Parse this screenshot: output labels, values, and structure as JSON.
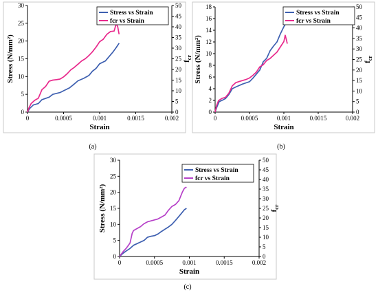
{
  "chart_data": [
    {
      "type": "line",
      "caption": "(a)",
      "xlabel": "Strain",
      "ylabel": "Stress (N/mm²)",
      "y2label_main": "f",
      "y2label_sub": "cr",
      "xlim": [
        0,
        0.002
      ],
      "ylim": [
        0,
        30
      ],
      "y2lim": [
        0,
        50
      ],
      "xticks": [
        "0",
        "0.0005",
        "0.001",
        "0.0015",
        "0.002"
      ],
      "yticks": [
        "0",
        "5",
        "10",
        "15",
        "20",
        "25",
        "30"
      ],
      "y2ticks": [
        "0",
        "5",
        "10",
        "15",
        "20",
        "25",
        "30",
        "35",
        "40",
        "45",
        "50"
      ],
      "legend_position": "top-right",
      "series": [
        {
          "name": "Stress vs Strain",
          "axis": "left",
          "color": "#3d5fb0",
          "points": [
            [
              0,
              0
            ],
            [
              3e-05,
              1.0
            ],
            [
              8e-05,
              2.0
            ],
            [
              0.00015,
              2.4
            ],
            [
              0.0002,
              3.5
            ],
            [
              0.0003,
              4.2
            ],
            [
              0.00035,
              5.0
            ],
            [
              0.00045,
              5.5
            ],
            [
              0.0005,
              6.0
            ],
            [
              0.00058,
              6.8
            ],
            [
              0.00063,
              7.6
            ],
            [
              0.0007,
              8.8
            ],
            [
              0.00078,
              9.5
            ],
            [
              0.00085,
              10.3
            ],
            [
              0.0009,
              11.5
            ],
            [
              0.00095,
              12.3
            ],
            [
              0.001,
              13.6
            ],
            [
              0.00108,
              14.4
            ],
            [
              0.00113,
              15.6
            ],
            [
              0.00118,
              16.8
            ],
            [
              0.00123,
              18.2
            ],
            [
              0.00127,
              19.4
            ]
          ]
        },
        {
          "name": "fcr vs Strain",
          "axis": "right",
          "color": "#e8298c",
          "points": [
            [
              0,
              0
            ],
            [
              2e-05,
              2.0
            ],
            [
              5e-05,
              4.0
            ],
            [
              0.0001,
              5.5
            ],
            [
              0.00015,
              6.5
            ],
            [
              0.0002,
              10.5
            ],
            [
              0.00025,
              12.0
            ],
            [
              0.0003,
              14.5
            ],
            [
              0.00035,
              15.0
            ],
            [
              0.0004,
              15.2
            ],
            [
              0.00045,
              15.5
            ],
            [
              0.0005,
              16.5
            ],
            [
              0.00055,
              18.0
            ],
            [
              0.0006,
              19.8
            ],
            [
              0.00065,
              21.0
            ],
            [
              0.0007,
              22.5
            ],
            [
              0.00075,
              24.0
            ],
            [
              0.0008,
              25.0
            ],
            [
              0.00085,
              26.5
            ],
            [
              0.0009,
              28.3
            ],
            [
              0.00095,
              30.5
            ],
            [
              0.001,
              33.0
            ],
            [
              0.00105,
              34.2
            ],
            [
              0.0011,
              36.5
            ],
            [
              0.00115,
              37.8
            ],
            [
              0.0012,
              38.0
            ],
            [
              0.00123,
              41.5
            ],
            [
              0.00125,
              40.0
            ],
            [
              0.00127,
              36.5
            ]
          ]
        }
      ]
    },
    {
      "type": "line",
      "caption": "(b)",
      "xlabel": "Strain",
      "ylabel": "Stress (N/mm²)",
      "y2label_main": "f",
      "y2label_sub": "cr",
      "xlim": [
        0,
        0.002
      ],
      "ylim": [
        0,
        18
      ],
      "y2lim": [
        0,
        50
      ],
      "xticks": [
        "0",
        "0.0005",
        "0.001",
        "0.0015",
        "0.002"
      ],
      "yticks": [
        "0",
        "2",
        "4",
        "6",
        "8",
        "10",
        "12",
        "14",
        "16",
        "18"
      ],
      "y2ticks": [
        "0",
        "5",
        "10",
        "15",
        "20",
        "25",
        "30",
        "35",
        "40",
        "45",
        "50"
      ],
      "legend_position": "top-right",
      "series": [
        {
          "name": "Stress vs Strain",
          "axis": "left",
          "color": "#3d5fb0",
          "points": [
            [
              0,
              0
            ],
            [
              3e-05,
              1.0
            ],
            [
              6e-05,
              1.8
            ],
            [
              0.0001,
              2.0
            ],
            [
              0.00015,
              2.3
            ],
            [
              0.0002,
              3.0
            ],
            [
              0.00025,
              4.0
            ],
            [
              0.0003,
              4.3
            ],
            [
              0.0004,
              4.8
            ],
            [
              0.00045,
              5.0
            ],
            [
              0.0005,
              5.2
            ],
            [
              0.00055,
              5.8
            ],
            [
              0.0006,
              6.5
            ],
            [
              0.00065,
              7.2
            ],
            [
              0.0007,
              8.6
            ],
            [
              0.00075,
              9.2
            ],
            [
              0.0008,
              10.5
            ],
            [
              0.00085,
              11.3
            ],
            [
              0.0009,
              12.0
            ],
            [
              0.00095,
              13.4
            ],
            [
              0.001,
              14.6
            ],
            [
              0.00102,
              15.0
            ]
          ]
        },
        {
          "name": "fcr vs Strain",
          "axis": "right",
          "color": "#e8298c",
          "points": [
            [
              0,
              0
            ],
            [
              2e-05,
              3.0
            ],
            [
              5e-05,
              5.5
            ],
            [
              0.0001,
              6.5
            ],
            [
              0.00015,
              7.0
            ],
            [
              0.0002,
              9.0
            ],
            [
              0.00025,
              12.5
            ],
            [
              0.0003,
              14.0
            ],
            [
              0.00035,
              14.5
            ],
            [
              0.0004,
              15.0
            ],
            [
              0.00045,
              15.5
            ],
            [
              0.0005,
              16.2
            ],
            [
              0.00055,
              17.5
            ],
            [
              0.0006,
              19.0
            ],
            [
              0.00065,
              21.5
            ],
            [
              0.0007,
              22.5
            ],
            [
              0.00075,
              24.5
            ],
            [
              0.0008,
              25.5
            ],
            [
              0.00085,
              27.0
            ],
            [
              0.0009,
              28.5
            ],
            [
              0.00095,
              31.0
            ],
            [
              0.001,
              33.5
            ],
            [
              0.00102,
              36.5
            ],
            [
              0.00104,
              34.0
            ],
            [
              0.00105,
              32.5
            ]
          ]
        }
      ]
    },
    {
      "type": "line",
      "caption": "(c)",
      "xlabel": "Strain",
      "ylabel": "Stress (N/mm²)",
      "y2label_main": "f",
      "y2label_sub": "cr",
      "xlim": [
        0,
        0.002
      ],
      "ylim": [
        0,
        30
      ],
      "y2lim": [
        0,
        50
      ],
      "xticks": [
        "0",
        "0.0005",
        "0.001",
        "0.0015",
        "0.002"
      ],
      "yticks": [
        "0",
        "5",
        "10",
        "15",
        "20",
        "25",
        "30"
      ],
      "y2ticks": [
        "0",
        "5",
        "10",
        "15",
        "20",
        "25",
        "30",
        "35",
        "40",
        "45",
        "50"
      ],
      "legend_position": "top-right",
      "series": [
        {
          "name": "Stress vs Strain",
          "axis": "left",
          "color": "#3d5fb0",
          "points": [
            [
              0,
              0
            ],
            [
              5e-05,
              1.0
            ],
            [
              0.0001,
              1.8
            ],
            [
              0.00015,
              2.5
            ],
            [
              0.0002,
              3.5
            ],
            [
              0.00025,
              4.0
            ],
            [
              0.0003,
              4.5
            ],
            [
              0.00035,
              5.0
            ],
            [
              0.0004,
              6.0
            ],
            [
              0.00045,
              6.3
            ],
            [
              0.0005,
              6.5
            ],
            [
              0.00055,
              7.0
            ],
            [
              0.0006,
              7.8
            ],
            [
              0.00065,
              8.5
            ],
            [
              0.0007,
              9.2
            ],
            [
              0.00075,
              10.0
            ],
            [
              0.0008,
              11.2
            ],
            [
              0.00085,
              12.5
            ],
            [
              0.0009,
              13.8
            ],
            [
              0.00093,
              14.6
            ],
            [
              0.00096,
              15.0
            ]
          ]
        },
        {
          "name": "fcr vs Strain",
          "axis": "right",
          "color": "#b640c8",
          "points": [
            [
              0,
              0
            ],
            [
              5e-05,
              2.5
            ],
            [
              0.0001,
              4.5
            ],
            [
              0.00015,
              7.0
            ],
            [
              0.00018,
              12.0
            ],
            [
              0.0002,
              13.5
            ],
            [
              0.00025,
              14.5
            ],
            [
              0.0003,
              15.5
            ],
            [
              0.00035,
              17.0
            ],
            [
              0.0004,
              18.0
            ],
            [
              0.00045,
              18.5
            ],
            [
              0.0005,
              19.0
            ],
            [
              0.00055,
              19.5
            ],
            [
              0.0006,
              20.5
            ],
            [
              0.00065,
              21.5
            ],
            [
              0.0007,
              24.0
            ],
            [
              0.00075,
              26.0
            ],
            [
              0.0008,
              27.0
            ],
            [
              0.00085,
              29.0
            ],
            [
              0.0009,
              33.5
            ],
            [
              0.00093,
              35.5
            ],
            [
              0.00096,
              36.0
            ]
          ]
        }
      ]
    }
  ]
}
